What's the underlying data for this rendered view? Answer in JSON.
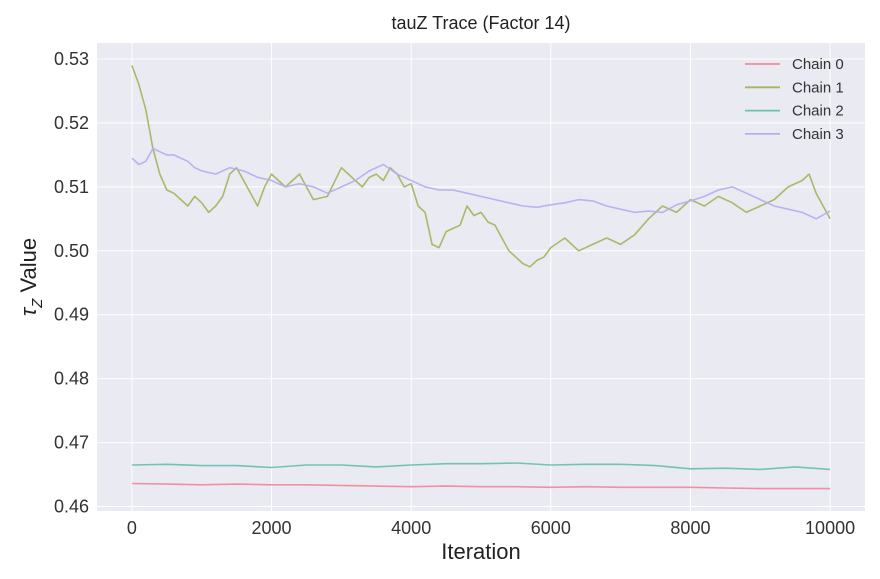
{
  "chart_data": {
    "type": "line",
    "title": "tauZ Trace (Factor 14)",
    "xlabel": "Iteration",
    "ylabel_prefix": "τ",
    "ylabel_subscript": "Z",
    "ylabel_suffix": " Value",
    "xlim": [
      -500,
      10500
    ],
    "ylim": [
      0.4593,
      0.5325
    ],
    "xticks": [
      0,
      2000,
      4000,
      6000,
      8000,
      10000
    ],
    "xtick_labels": [
      "0",
      "2000",
      "4000",
      "6000",
      "8000",
      "10000"
    ],
    "yticks": [
      0.46,
      0.47,
      0.48,
      0.49,
      0.5,
      0.51,
      0.52,
      0.53
    ],
    "ytick_labels": [
      "0.46",
      "0.47",
      "0.48",
      "0.49",
      "0.50",
      "0.51",
      "0.52",
      "0.53"
    ],
    "grid": true,
    "legend_position": "top-right",
    "series": [
      {
        "name": "Chain 0",
        "color": "#f08a9a",
        "x": [
          0,
          500,
          1000,
          1500,
          2000,
          2500,
          3000,
          3500,
          4000,
          4500,
          5000,
          5500,
          6000,
          6500,
          7000,
          7500,
          8000,
          8500,
          9000,
          9500,
          10000
        ],
        "y": [
          0.4636,
          0.4635,
          0.4634,
          0.4635,
          0.4634,
          0.4634,
          0.4633,
          0.4632,
          0.4631,
          0.4632,
          0.4631,
          0.4631,
          0.463,
          0.4631,
          0.463,
          0.463,
          0.463,
          0.4629,
          0.4628,
          0.4628,
          0.4628
        ]
      },
      {
        "name": "Chain 1",
        "color": "#a8b560",
        "x": [
          0,
          100,
          200,
          300,
          400,
          500,
          600,
          700,
          800,
          900,
          1000,
          1100,
          1200,
          1300,
          1400,
          1500,
          1600,
          1700,
          1800,
          1900,
          2000,
          2200,
          2400,
          2600,
          2800,
          3000,
          3100,
          3200,
          3300,
          3400,
          3500,
          3600,
          3700,
          3800,
          3900,
          4000,
          4100,
          4200,
          4300,
          4400,
          4500,
          4600,
          4700,
          4800,
          4900,
          5000,
          5100,
          5200,
          5300,
          5400,
          5500,
          5600,
          5700,
          5800,
          5900,
          6000,
          6200,
          6400,
          6600,
          6800,
          7000,
          7200,
          7400,
          7600,
          7800,
          8000,
          8200,
          8400,
          8600,
          8800,
          9000,
          9200,
          9400,
          9600,
          9700,
          9800,
          9900,
          10000
        ],
        "y": [
          0.529,
          0.526,
          0.522,
          0.516,
          0.512,
          0.5095,
          0.509,
          0.508,
          0.507,
          0.5085,
          0.5075,
          0.506,
          0.507,
          0.5085,
          0.512,
          0.513,
          0.511,
          0.509,
          0.507,
          0.51,
          0.512,
          0.51,
          0.512,
          0.508,
          0.5085,
          0.513,
          0.512,
          0.511,
          0.51,
          0.5115,
          0.512,
          0.511,
          0.513,
          0.512,
          0.51,
          0.5105,
          0.507,
          0.506,
          0.501,
          0.5005,
          0.503,
          0.5035,
          0.504,
          0.507,
          0.5055,
          0.506,
          0.5045,
          0.504,
          0.502,
          0.5,
          0.499,
          0.498,
          0.4975,
          0.4985,
          0.499,
          0.5005,
          0.502,
          0.5,
          0.501,
          0.502,
          0.501,
          0.5025,
          0.505,
          0.507,
          0.506,
          0.508,
          0.507,
          0.5085,
          0.5075,
          0.506,
          0.507,
          0.508,
          0.51,
          0.511,
          0.512,
          0.509,
          0.507,
          0.505
        ]
      },
      {
        "name": "Chain 2",
        "color": "#6bc1b3",
        "x": [
          0,
          500,
          1000,
          1500,
          2000,
          2500,
          3000,
          3500,
          4000,
          4500,
          5000,
          5500,
          6000,
          6500,
          7000,
          7500,
          8000,
          8500,
          9000,
          9500,
          10000
        ],
        "y": [
          0.4665,
          0.4666,
          0.4664,
          0.4664,
          0.4661,
          0.4665,
          0.4665,
          0.4662,
          0.4665,
          0.4667,
          0.4667,
          0.4668,
          0.4665,
          0.4666,
          0.4666,
          0.4664,
          0.4659,
          0.466,
          0.4658,
          0.4662,
          0.4658
        ]
      },
      {
        "name": "Chain 3",
        "color": "#b7aef0",
        "x": [
          0,
          100,
          200,
          300,
          400,
          500,
          600,
          700,
          800,
          900,
          1000,
          1200,
          1400,
          1600,
          1800,
          2000,
          2200,
          2400,
          2600,
          2800,
          3000,
          3200,
          3400,
          3600,
          3800,
          4000,
          4200,
          4400,
          4600,
          4800,
          5000,
          5200,
          5400,
          5600,
          5800,
          6000,
          6200,
          6400,
          6600,
          6800,
          7000,
          7200,
          7400,
          7600,
          7800,
          8000,
          8200,
          8400,
          8600,
          8800,
          9000,
          9200,
          9400,
          9600,
          9800,
          10000
        ],
        "y": [
          0.5145,
          0.5135,
          0.514,
          0.516,
          0.5155,
          0.515,
          0.515,
          0.5145,
          0.514,
          0.513,
          0.5125,
          0.512,
          0.513,
          0.5125,
          0.5115,
          0.511,
          0.51,
          0.5105,
          0.51,
          0.509,
          0.51,
          0.511,
          0.5125,
          0.5135,
          0.512,
          0.511,
          0.51,
          0.5095,
          0.5095,
          0.509,
          0.5085,
          0.508,
          0.5075,
          0.507,
          0.5068,
          0.5072,
          0.5075,
          0.508,
          0.5078,
          0.507,
          0.5065,
          0.506,
          0.5062,
          0.506,
          0.5072,
          0.5078,
          0.5085,
          0.5095,
          0.51,
          0.509,
          0.508,
          0.507,
          0.5065,
          0.506,
          0.505,
          0.5062
        ]
      }
    ]
  },
  "colors": {
    "plot_background": "#eaeaf2",
    "grid": "#ffffff"
  }
}
